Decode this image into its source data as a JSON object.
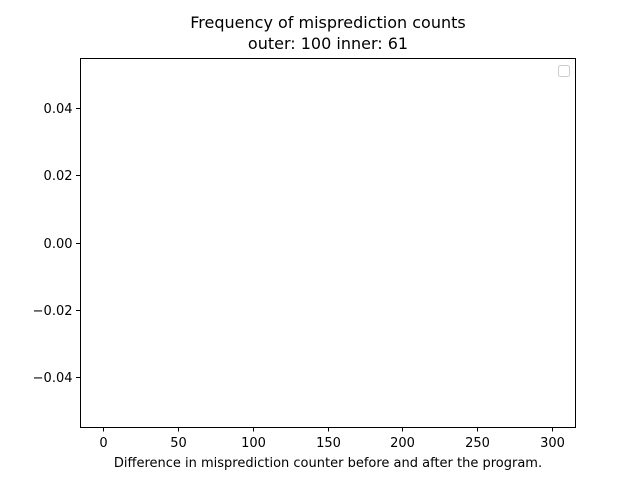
{
  "chart_data": {
    "type": "scatter",
    "title": "Frequency of misprediction counts",
    "subtitle": "outer: 100  inner: 61",
    "xlabel": "Difference in misprediction counter before and after the program.",
    "ylabel": "",
    "xlim": [
      -15.5,
      315.5
    ],
    "ylim": [
      -0.055,
      0.055
    ],
    "x_ticks": [
      0,
      50,
      100,
      150,
      200,
      250,
      300
    ],
    "x_tick_labels": [
      "0",
      "50",
      "100",
      "150",
      "200",
      "250",
      "300"
    ],
    "y_ticks": [
      0.04,
      0.02,
      0.0,
      -0.02,
      -0.04
    ],
    "y_tick_labels": [
      "0.04",
      "0.02",
      "0.00",
      "−0.02",
      "−0.04"
    ],
    "series": [],
    "legend": {
      "location": "upper right",
      "entries": []
    },
    "grid": false
  }
}
